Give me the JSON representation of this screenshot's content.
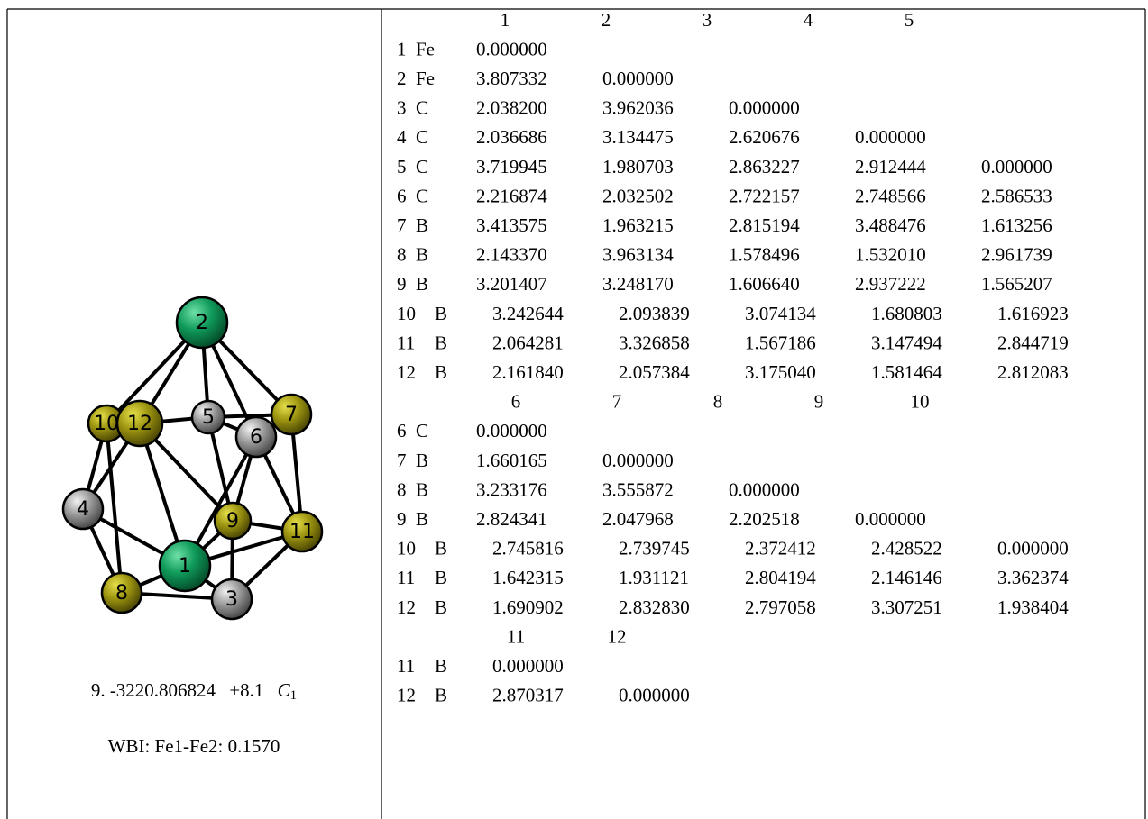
{
  "figure": {
    "atoms": [
      "2",
      "10",
      "12",
      "5",
      "6",
      "7",
      "4",
      "9",
      "11",
      "1",
      "8",
      "3"
    ],
    "caption": {
      "index": "9.",
      "energy": "-3220.806824",
      "relative": "+8.1",
      "symmetry": "C",
      "symmetry_sub": "1"
    },
    "wbi": "WBI: Fe1-Fe2: 0.1570"
  },
  "matrix": {
    "blocks": [
      {
        "columns": [
          "1",
          "2",
          "3",
          "4",
          "5"
        ],
        "rows": [
          {
            "index": "1",
            "element": "Fe",
            "values": [
              "0.000000"
            ]
          },
          {
            "index": "2",
            "element": "Fe",
            "values": [
              "3.807332",
              "0.000000"
            ]
          },
          {
            "index": "3",
            "element": "C",
            "values": [
              "2.038200",
              "3.962036",
              "0.000000"
            ]
          },
          {
            "index": "4",
            "element": "C",
            "values": [
              "2.036686",
              "3.134475",
              "2.620676",
              "0.000000"
            ]
          },
          {
            "index": "5",
            "element": "C",
            "values": [
              "3.719945",
              "1.980703",
              "2.863227",
              "2.912444",
              "0.000000"
            ]
          },
          {
            "index": "6",
            "element": "C",
            "values": [
              "2.216874",
              "2.032502",
              "2.722157",
              "2.748566",
              "2.586533"
            ]
          },
          {
            "index": "7",
            "element": "B",
            "values": [
              "3.413575",
              "1.963215",
              "2.815194",
              "3.488476",
              "1.613256"
            ]
          },
          {
            "index": "8",
            "element": "B",
            "values": [
              "2.143370",
              "3.963134",
              "1.578496",
              "1.532010",
              "2.961739"
            ]
          },
          {
            "index": "9",
            "element": "B",
            "values": [
              "3.201407",
              "3.248170",
              "1.606640",
              "2.937222",
              "1.565207"
            ]
          },
          {
            "index": "10",
            "element": "B",
            "values": [
              "3.242644",
              "2.093839",
              "3.074134",
              "1.680803",
              "1.616923"
            ]
          },
          {
            "index": "11",
            "element": "B",
            "values": [
              "2.064281",
              "3.326858",
              "1.567186",
              "3.147494",
              "2.844719"
            ]
          },
          {
            "index": "12",
            "element": "B",
            "values": [
              "2.161840",
              "2.057384",
              "3.175040",
              "1.581464",
              "2.812083"
            ]
          }
        ]
      },
      {
        "columns": [
          "6",
          "7",
          "8",
          "9",
          "10"
        ],
        "rows": [
          {
            "index": "6",
            "element": "C",
            "values": [
              "0.000000"
            ]
          },
          {
            "index": "7",
            "element": "B",
            "values": [
              "1.660165",
              "0.000000"
            ]
          },
          {
            "index": "8",
            "element": "B",
            "values": [
              "3.233176",
              "3.555872",
              "0.000000"
            ]
          },
          {
            "index": "9",
            "element": "B",
            "values": [
              "2.824341",
              "2.047968",
              "2.202518",
              "0.000000"
            ]
          },
          {
            "index": "10",
            "element": "B",
            "values": [
              "2.745816",
              "2.739745",
              "2.372412",
              "2.428522",
              "0.000000"
            ]
          },
          {
            "index": "11",
            "element": "B",
            "values": [
              "1.642315",
              "1.931121",
              "2.804194",
              "2.146146",
              "3.362374"
            ]
          },
          {
            "index": "12",
            "element": "B",
            "values": [
              "1.690902",
              "2.832830",
              "2.797058",
              "3.307251",
              "1.938404"
            ]
          }
        ]
      },
      {
        "columns": [
          "11",
          "12"
        ],
        "rows": [
          {
            "index": "11",
            "element": "B",
            "values": [
              "0.000000"
            ]
          },
          {
            "index": "12",
            "element": "B",
            "values": [
              "2.870317",
              "0.000000"
            ]
          }
        ]
      }
    ]
  }
}
